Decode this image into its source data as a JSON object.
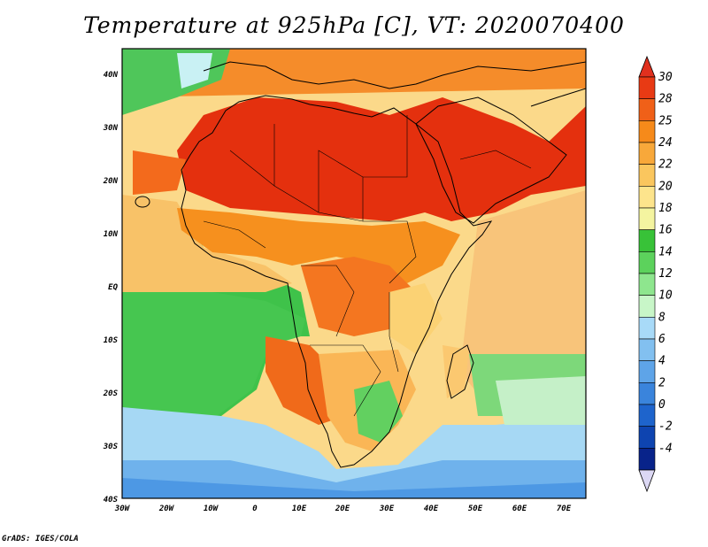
{
  "title": "Temperature at 925hPa [C], VT: 2020070400",
  "credit": "GrADS: IGES/COLA",
  "map": {
    "variable": "Temperature at 925hPa",
    "units": "C",
    "valid_time": "2020070400",
    "lon_ticks": [
      "30W",
      "20W",
      "10W",
      "0",
      "10E",
      "20E",
      "30E",
      "40E",
      "50E",
      "60E",
      "70E"
    ],
    "lat_ticks": [
      "40N",
      "30N",
      "20N",
      "10N",
      "EQ",
      "10S",
      "20S",
      "30S",
      "40S"
    ],
    "lon_range": [
      -30,
      76
    ],
    "lat_range": [
      -40,
      45
    ]
  },
  "colorbar": {
    "levels": [
      "30",
      "28",
      "25",
      "24",
      "22",
      "20",
      "18",
      "16",
      "14",
      "12",
      "10",
      "8",
      "6",
      "4",
      "2",
      "0",
      "-2",
      "-4"
    ],
    "colors": {
      "top_arrow": "#e0301e",
      "bottom_arrow": "#dcd8f4",
      "bins": [
        "#e83a14",
        "#f06018",
        "#f68a1a",
        "#f8a83a",
        "#fac65e",
        "#fde48c",
        "#f4f4a0",
        "#38c238",
        "#5cd25c",
        "#8ee68e",
        "#c8f6c8",
        "#a8daf8",
        "#82c0f0",
        "#5ea4e8",
        "#3a84dc",
        "#1e64cc",
        "#0e44b0",
        "#08238a"
      ]
    }
  }
}
